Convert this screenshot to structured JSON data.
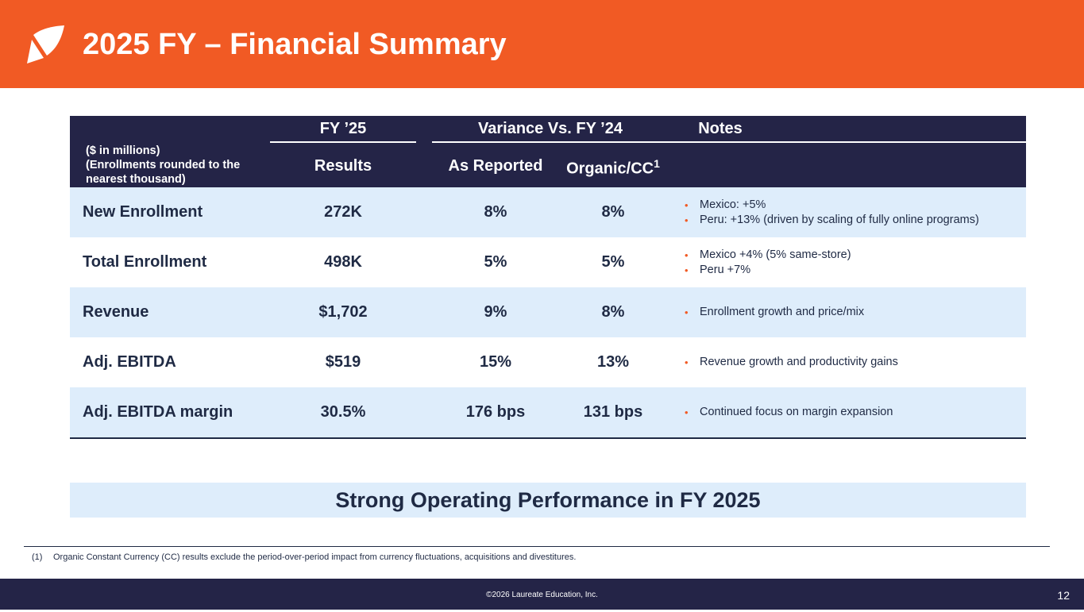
{
  "header": {
    "title": "2025 FY – Financial Summary"
  },
  "table": {
    "group_fy25": "FY ’25",
    "group_variance": "Variance Vs. FY ’24",
    "group_notes": "Notes",
    "units_line1": "($ in millions)",
    "units_line2": "(Enrollments rounded to the nearest thousand)",
    "col_results": "Results",
    "col_reported": "As Reported",
    "col_organic": "Organic/CC",
    "col_organic_sup": "1",
    "rows": [
      {
        "label": "New Enrollment",
        "results": "272K",
        "reported": "8%",
        "organic": "8%",
        "notes": [
          "Mexico: +5%",
          "Peru: +13% (driven by scaling of fully online programs)"
        ]
      },
      {
        "label": "Total Enrollment",
        "results": "498K",
        "reported": "5%",
        "organic": "5%",
        "notes": [
          "Mexico +4% (5% same-store)",
          "Peru +7%"
        ]
      },
      {
        "label": "Revenue",
        "results": "$1,702",
        "reported": "9%",
        "organic": "8%",
        "notes": [
          "Enrollment growth and price/mix"
        ]
      },
      {
        "label": "Adj. EBITDA",
        "results": "$519",
        "reported": "15%",
        "organic": "13%",
        "notes": [
          "Revenue growth and productivity gains"
        ]
      },
      {
        "label": "Adj. EBITDA margin",
        "results": "30.5%",
        "reported": "176 bps",
        "organic": "131 bps",
        "notes": [
          "Continued focus on margin expansion"
        ]
      }
    ]
  },
  "banner": "Strong Operating Performance in FY 2025",
  "footnote": {
    "marker": "(1)",
    "text": "Organic Constant Currency (CC) results exclude the period-over-period impact from currency fluctuations, acquisitions and divestitures."
  },
  "footer": {
    "copyright": "©2026 Laureate Education, Inc.",
    "page": "12"
  },
  "colors": {
    "brand_orange": "#f15a24",
    "navy": "#242447",
    "row_shade": "#deedfb"
  }
}
